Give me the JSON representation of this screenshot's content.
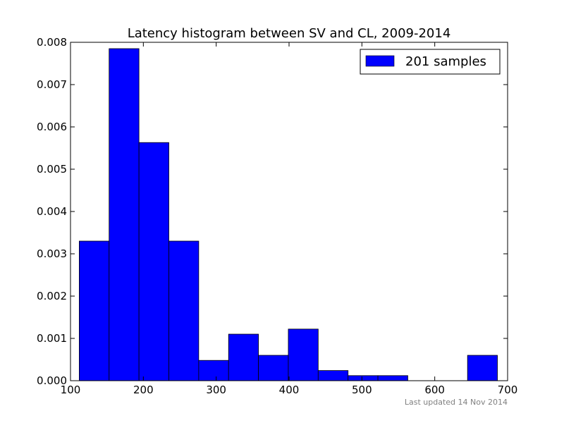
{
  "chart_data": {
    "type": "bar",
    "title": "Latency histogram between SV and CL, 2009-2014",
    "xlabel": "",
    "ylabel": "",
    "xlim": [
      100,
      700
    ],
    "ylim": [
      0,
      0.008
    ],
    "x_ticks": [
      "100",
      "200",
      "300",
      "400",
      "500",
      "600",
      "700"
    ],
    "y_ticks": [
      "0.000",
      "0.001",
      "0.002",
      "0.003",
      "0.004",
      "0.005",
      "0.006",
      "0.007",
      "0.008"
    ],
    "bins": [
      {
        "start": 112,
        "end": 153,
        "value": 0.0033
      },
      {
        "start": 153,
        "end": 194,
        "value": 0.00785
      },
      {
        "start": 194,
        "end": 235,
        "value": 0.00563
      },
      {
        "start": 235,
        "end": 276,
        "value": 0.0033
      },
      {
        "start": 276,
        "end": 317,
        "value": 0.00048
      },
      {
        "start": 317,
        "end": 358,
        "value": 0.0011
      },
      {
        "start": 358,
        "end": 399,
        "value": 0.0006
      },
      {
        "start": 399,
        "end": 440,
        "value": 0.00122
      },
      {
        "start": 440,
        "end": 481,
        "value": 0.00024
      },
      {
        "start": 481,
        "end": 522,
        "value": 0.00012
      },
      {
        "start": 522,
        "end": 563,
        "value": 0.00012
      },
      {
        "start": 563,
        "end": 604,
        "value": 0
      },
      {
        "start": 604,
        "end": 645,
        "value": 0
      },
      {
        "start": 645,
        "end": 686,
        "value": 0.0006
      }
    ],
    "series": [
      {
        "name": "201 samples",
        "color": "#0000ff"
      }
    ],
    "legend_position": "top-right",
    "grid": false
  },
  "footer_note": "Last updated 14 Nov 2014"
}
